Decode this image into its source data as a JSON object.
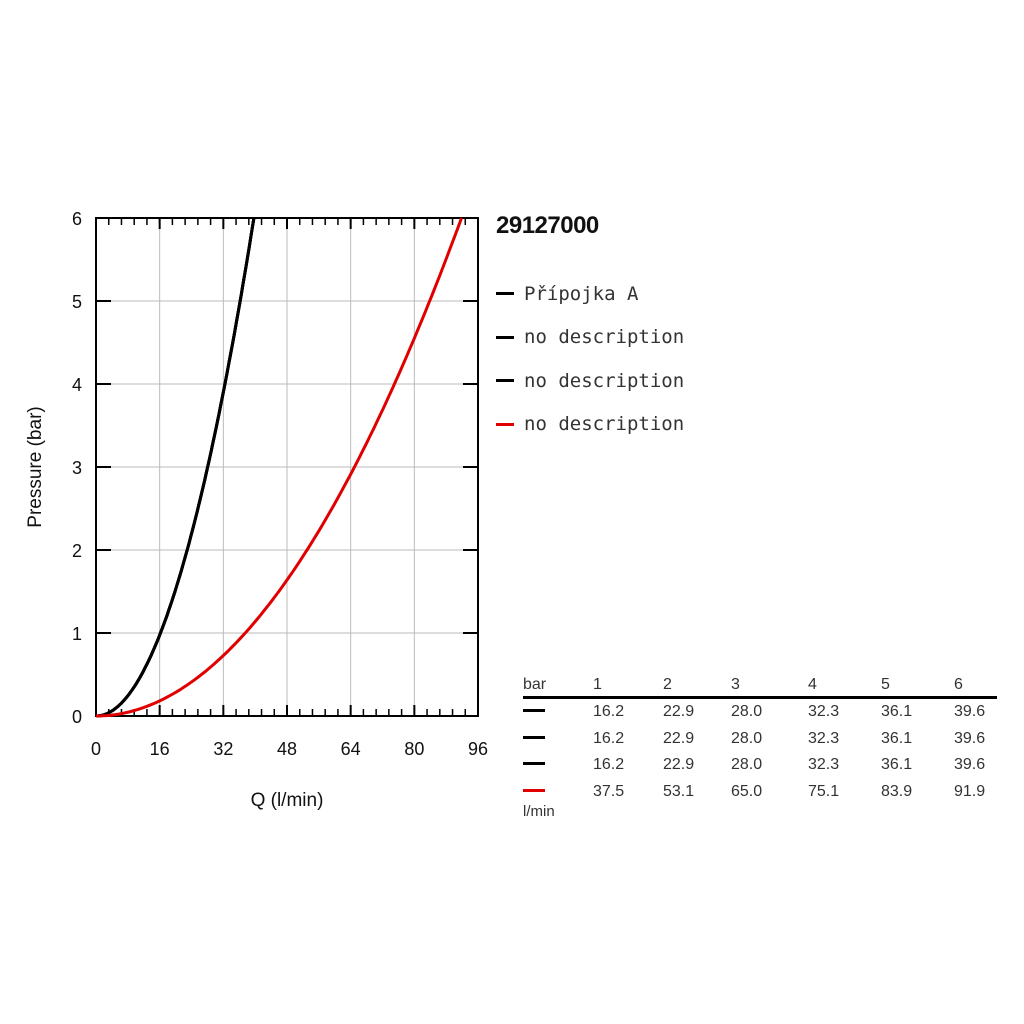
{
  "chart_data": {
    "type": "line",
    "title": "29127000",
    "xlabel": "Q (l/min)",
    "ylabel": "Pressure (bar)",
    "xlim": [
      0,
      96
    ],
    "ylim": [
      0,
      6
    ],
    "xticks": [
      "0",
      "16",
      "32",
      "48",
      "64",
      "80",
      "96"
    ],
    "yticks": [
      "0",
      "1",
      "2",
      "3",
      "4",
      "5",
      "6"
    ],
    "grid": true,
    "legend_position": "right",
    "series": [
      {
        "name": "Přípojka A",
        "color": "#000000",
        "k": 16.2,
        "values": [
          16.2,
          22.9,
          28.0,
          32.3,
          36.1,
          39.6
        ]
      },
      {
        "name": "no description",
        "color": "#000000",
        "k": 16.2,
        "values": [
          16.2,
          22.9,
          28.0,
          32.3,
          36.1,
          39.6
        ]
      },
      {
        "name": "no description",
        "color": "#000000",
        "k": 16.2,
        "values": [
          16.2,
          22.9,
          28.0,
          32.3,
          36.1,
          39.6
        ]
      },
      {
        "name": "no description",
        "color": "#e00000",
        "k": 37.5,
        "values": [
          37.5,
          53.1,
          65.0,
          75.1,
          83.9,
          91.9
        ]
      }
    ],
    "table": {
      "header_label": "bar",
      "unit_label": "l/min",
      "pressures": [
        "1",
        "2",
        "3",
        "4",
        "5",
        "6"
      ],
      "rows": [
        [
          "16.2",
          "22.9",
          "28.0",
          "32.3",
          "36.1",
          "39.6"
        ],
        [
          "16.2",
          "22.9",
          "28.0",
          "32.3",
          "36.1",
          "39.6"
        ],
        [
          "16.2",
          "22.9",
          "28.0",
          "32.3",
          "36.1",
          "39.6"
        ],
        [
          "37.5",
          "53.1",
          "65.0",
          "75.1",
          "83.9",
          "91.9"
        ]
      ]
    }
  }
}
